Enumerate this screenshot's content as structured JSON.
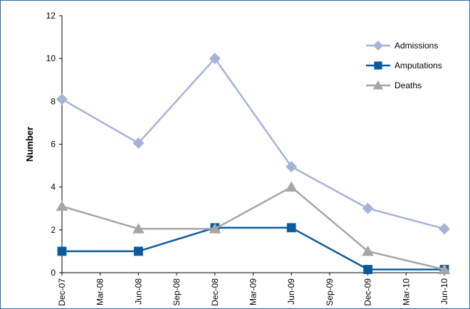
{
  "chart_data": {
    "type": "line",
    "ylabel": "Number",
    "xlabel": "",
    "ylim": [
      0,
      12
    ],
    "yticks": [
      "0",
      "2",
      "4",
      "6",
      "8",
      "10",
      "12"
    ],
    "xticks": [
      "Dec-07",
      "Mar-08",
      "Jun-08",
      "Sep-08",
      "Dec-08",
      "Mar-09",
      "Jun-09",
      "Sep-09",
      "Dec-09",
      "Mar-10",
      "Jun-10"
    ],
    "x": [
      "Dec-07",
      "Jun-08",
      "Dec-08",
      "Jun-09",
      "Dec-09",
      "Jun-10"
    ],
    "series": [
      {
        "name": "Admissions",
        "marker": "diamond",
        "color": "#a5b3d9",
        "values": [
          8.1,
          6.05,
          10.0,
          4.95,
          3.0,
          2.05
        ]
      },
      {
        "name": "Amputations",
        "marker": "square",
        "color": "#0c5a9e",
        "values": [
          1.0,
          1.0,
          2.1,
          2.1,
          0.15,
          0.15
        ]
      },
      {
        "name": "Deaths",
        "marker": "triangle",
        "color": "#a6a6a6",
        "values": [
          3.1,
          2.05,
          2.05,
          4.0,
          1.0,
          0.15
        ]
      }
    ],
    "grid": false,
    "legend_position": "top-right"
  }
}
